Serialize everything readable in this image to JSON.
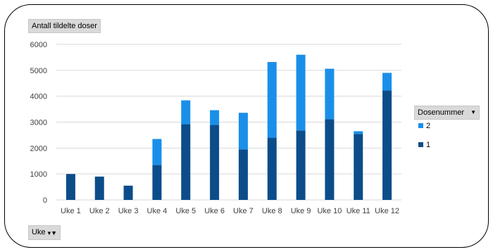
{
  "chart_data": {
    "type": "bar",
    "stacked": true,
    "title": "",
    "value_field_label": "Antall tildelte doser",
    "axis_field_label": "Uke",
    "legend_title": "Dosenummer",
    "legend_placement": "right",
    "categories": [
      "Uke 1",
      "Uke 2",
      "Uke 3",
      "Uke 4",
      "Uke 5",
      "Uke 6",
      "Uke 7",
      "Uke 8",
      "Uke 9",
      "Uke 10",
      "Uke 11",
      "Uke 12"
    ],
    "series": [
      {
        "name": "1",
        "color": "#0b4d8a",
        "values": [
          1000,
          900,
          550,
          1350,
          2920,
          2890,
          1950,
          2400,
          2680,
          3110,
          2540,
          4220
        ]
      },
      {
        "name": "2",
        "color": "#1a8fea",
        "values": [
          0,
          0,
          0,
          1000,
          920,
          570,
          1410,
          2920,
          2920,
          1950,
          110,
          680
        ]
      }
    ],
    "ylim": [
      0,
      6000
    ],
    "yticks": [
      0,
      1000,
      2000,
      3000,
      4000,
      5000,
      6000
    ],
    "grid": true,
    "gridline_color": "#d9d9d9"
  }
}
